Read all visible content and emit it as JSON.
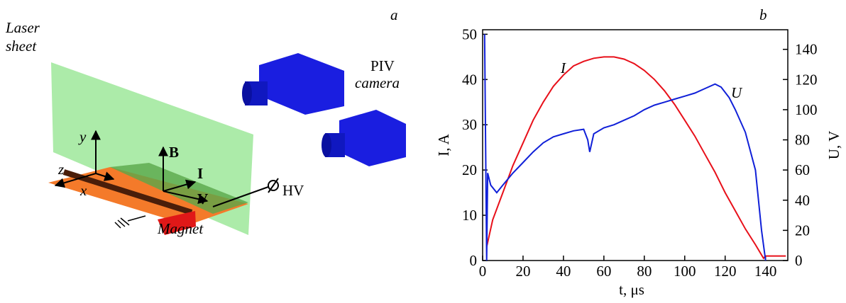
{
  "diagram": {
    "panel_label": "a",
    "laser_1": "Laser",
    "laser_2": "sheet",
    "camera_1": "PIV",
    "camera_2": "camera",
    "axis_y": "y",
    "axis_z": "z",
    "axis_x": "x",
    "field_b": "B",
    "current_i": "I",
    "velocity_v": "V",
    "hv": "HV",
    "magnet": "Magnet"
  },
  "chart_data": {
    "type": "line",
    "panel_label": "b",
    "xlabel": "t, μs",
    "ylabel": "I, A",
    "y2label": "U, V",
    "xlim": [
      0,
      151
    ],
    "xticks": [
      0,
      20,
      40,
      60,
      80,
      100,
      120,
      140
    ],
    "ylim": [
      0,
      51
    ],
    "yticks": [
      0,
      10,
      20,
      30,
      40,
      50
    ],
    "y2lim": [
      0,
      153
    ],
    "y2ticks": [
      0,
      20,
      40,
      60,
      80,
      100,
      120,
      140
    ],
    "series": [
      {
        "name": "I",
        "color": "#e8101a",
        "axis": "y",
        "x": [
          2,
          5,
          10,
          15,
          20,
          25,
          30,
          35,
          40,
          45,
          50,
          55,
          60,
          65,
          70,
          75,
          80,
          85,
          90,
          95,
          100,
          105,
          110,
          115,
          120,
          125,
          130,
          135,
          139,
          140,
          145,
          150
        ],
        "values": [
          3,
          9,
          15,
          21,
          26,
          31,
          35,
          38.5,
          41,
          43,
          44,
          44.7,
          45,
          45,
          44.5,
          43.5,
          42,
          40,
          37.5,
          34.5,
          31,
          27.5,
          23.5,
          19.5,
          15,
          11,
          7,
          3.5,
          0.5,
          1,
          1,
          1
        ]
      },
      {
        "name": "U",
        "color": "#1020d8",
        "axis": "y2",
        "x": [
          1,
          2,
          2.5,
          4,
          7,
          10,
          15,
          20,
          25,
          30,
          35,
          40,
          45,
          50,
          52,
          53,
          55,
          60,
          65,
          70,
          75,
          80,
          85,
          90,
          95,
          100,
          105,
          110,
          115,
          118,
          122,
          125,
          130,
          135,
          138,
          140
        ],
        "values": [
          150,
          0,
          58,
          50,
          45,
          50,
          58,
          65,
          72,
          78,
          82,
          84,
          86,
          87,
          80,
          72,
          84,
          88,
          90,
          93,
          96,
          100,
          103,
          105,
          107,
          109,
          111,
          114,
          117,
          115,
          108,
          100,
          85,
          60,
          20,
          0
        ]
      }
    ]
  }
}
